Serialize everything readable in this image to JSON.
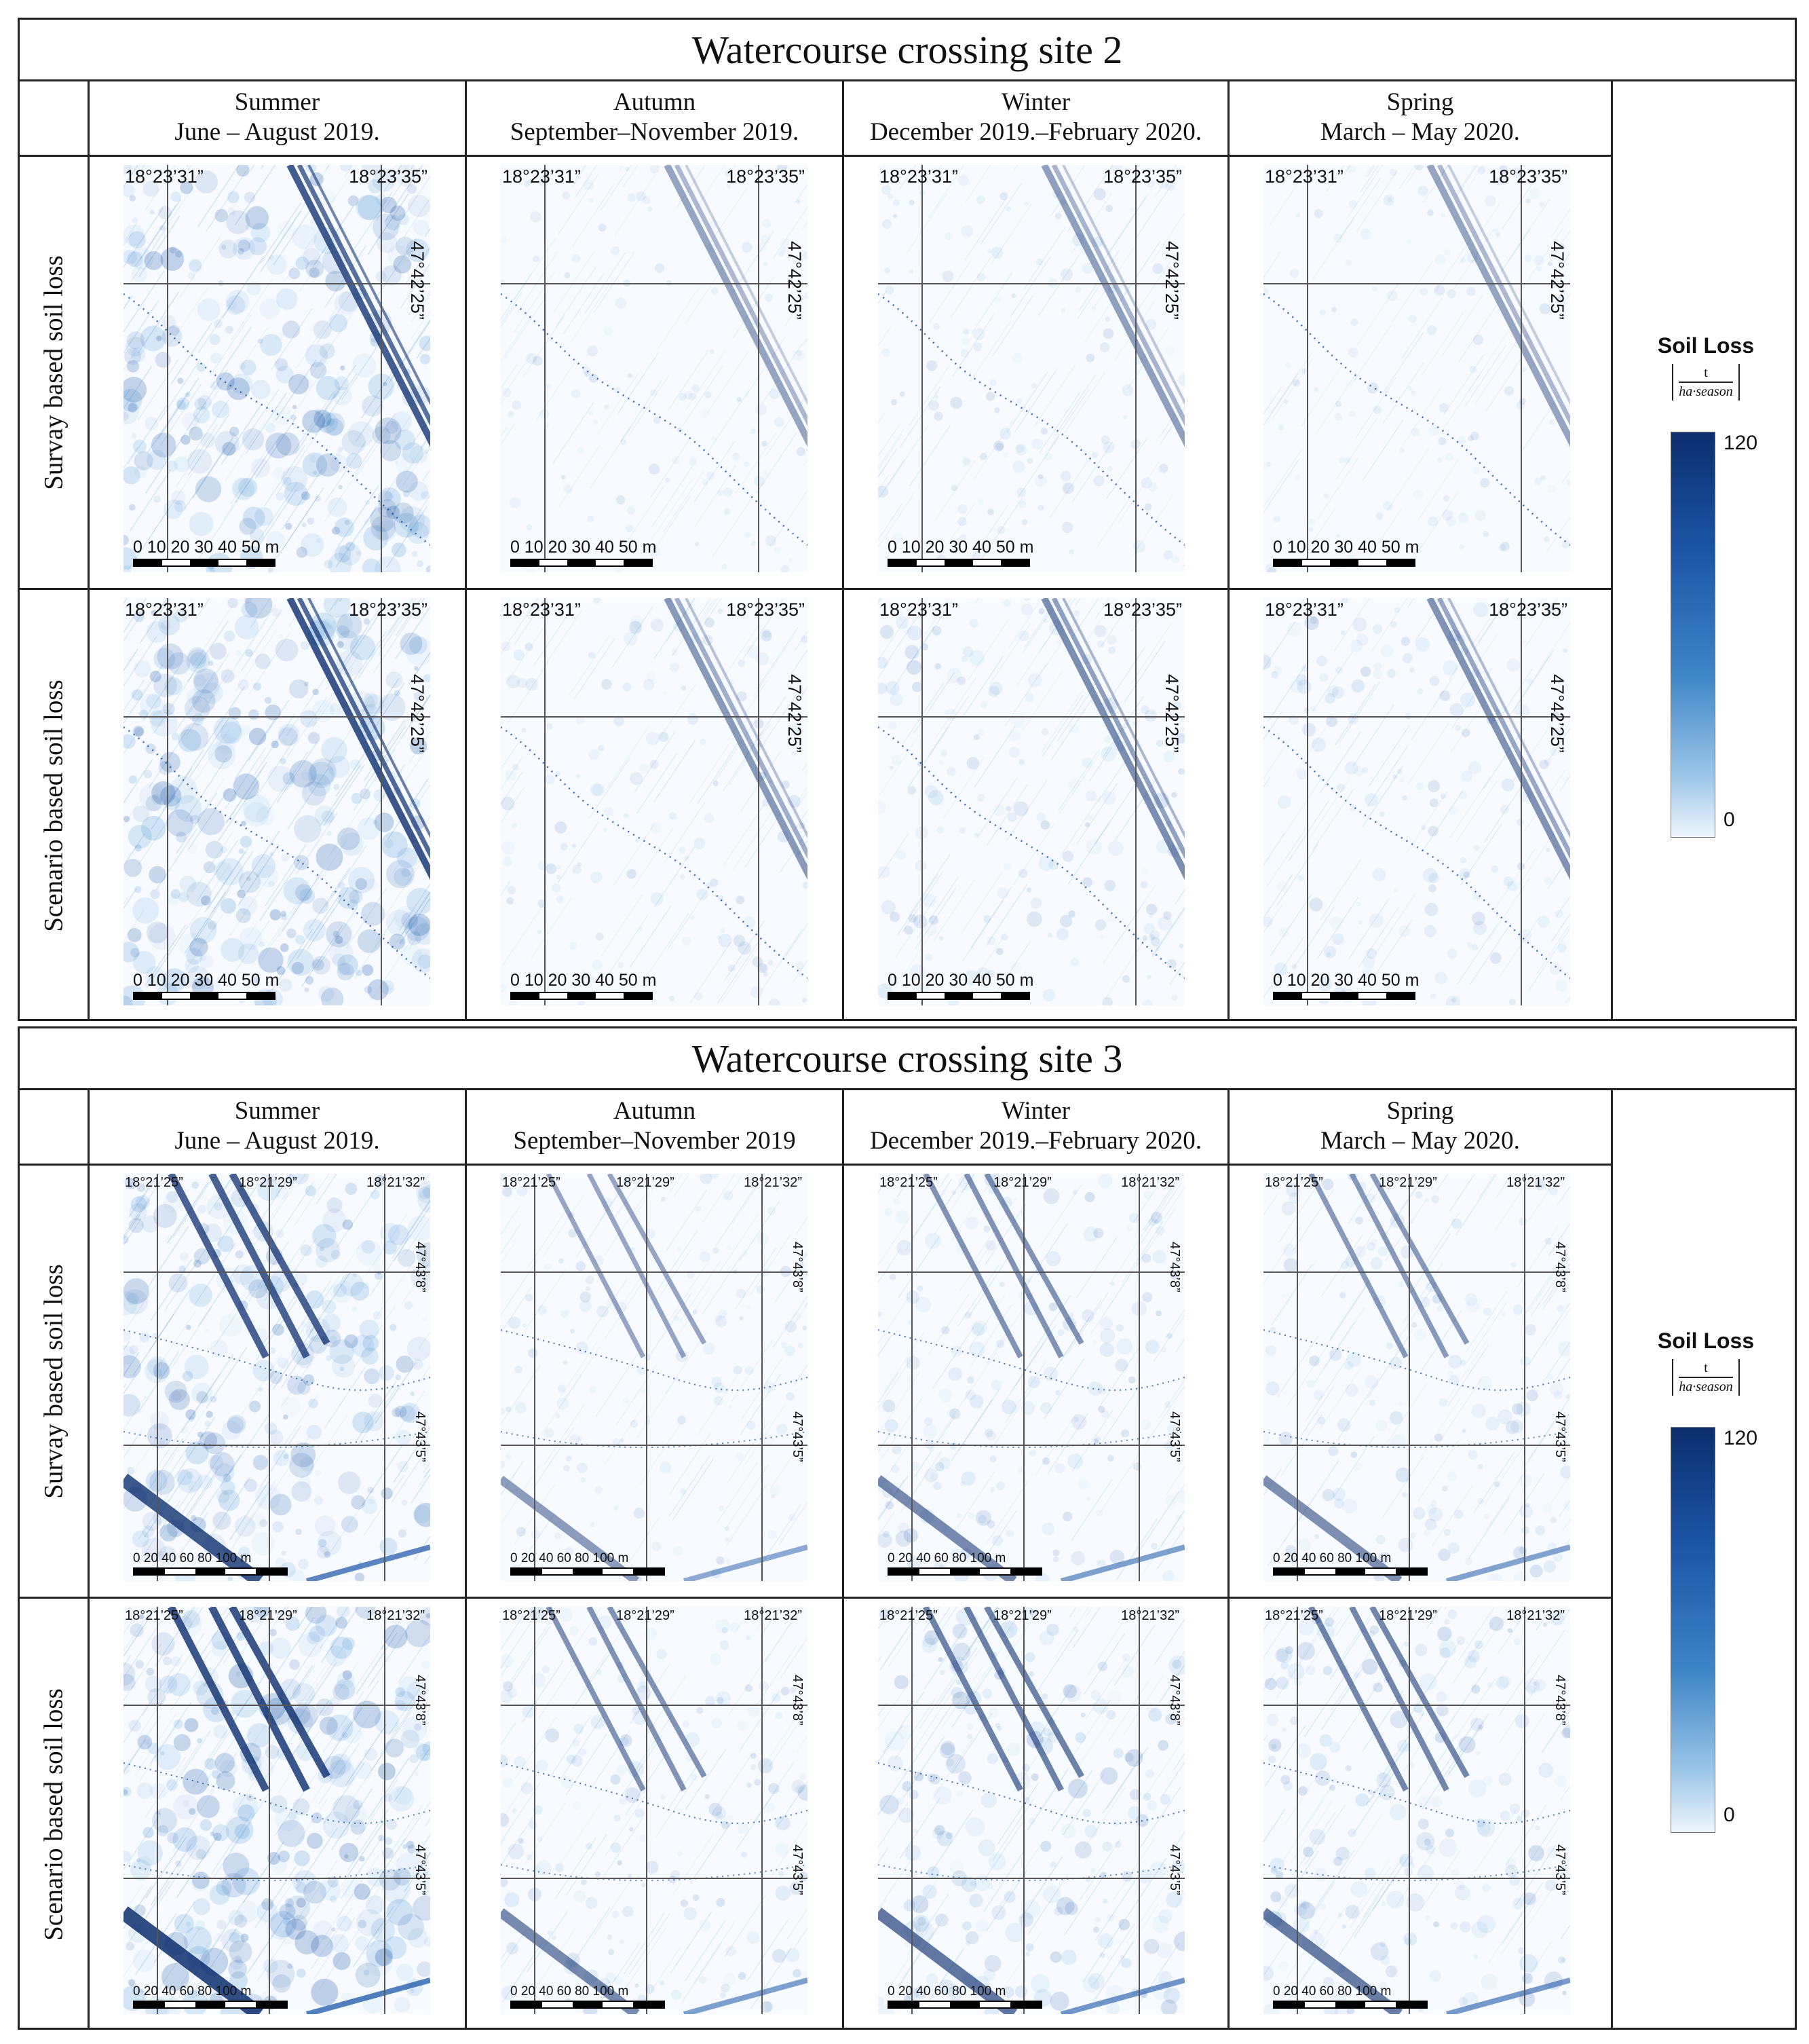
{
  "colors": {
    "low": "#eef5fc",
    "high": "#0d2e6e",
    "grid": "#555555"
  },
  "legend": {
    "title": "Soil Loss",
    "unit_numerator": "t",
    "unit_denominator": "ha·season",
    "max": "120",
    "min": "0"
  },
  "sites": [
    {
      "title": "Watercourse crossing site 2",
      "columns": [
        {
          "season": "Summer",
          "period": "June – August 2019."
        },
        {
          "season": "Autumn",
          "period": "September–November 2019."
        },
        {
          "season": "Winter",
          "period": "December 2019.–February  2020."
        },
        {
          "season": "Spring",
          "period": "March – May 2020."
        }
      ],
      "rows": [
        "Survay based soil loss",
        "Scenario based soil loss"
      ],
      "coords": {
        "lon_left": "18°23’31”",
        "lon_right": "18°23’35”",
        "lat_1": "47°42’25”"
      },
      "scale": "0  10 20 30 40 50 m"
    },
    {
      "title": "Watercourse crossing site 3",
      "columns": [
        {
          "season": "Summer",
          "period": "June – August 2019."
        },
        {
          "season": "Autumn",
          "period": "September–November 2019"
        },
        {
          "season": "Winter",
          "period": "December 2019.–February  2020."
        },
        {
          "season": "Spring",
          "period": "March – May 2020."
        }
      ],
      "rows": [
        "Survay based soil loss",
        "Scenario based soil loss"
      ],
      "coords": {
        "lon_left": "18°21’25”",
        "lon_mid": "18°21’29”",
        "lon_right": "18°21’32”",
        "lat_1": "47°43’8”",
        "lat_2": "47°43’5”"
      },
      "scale": "0   20   40   60  80   100 m"
    }
  ],
  "intensity": {
    "site2": [
      [
        0.95,
        0.3,
        0.35,
        0.3
      ],
      [
        1.0,
        0.4,
        0.5,
        0.45
      ]
    ],
    "site3": [
      [
        0.9,
        0.35,
        0.5,
        0.45
      ],
      [
        1.0,
        0.5,
        0.65,
        0.6
      ]
    ]
  }
}
